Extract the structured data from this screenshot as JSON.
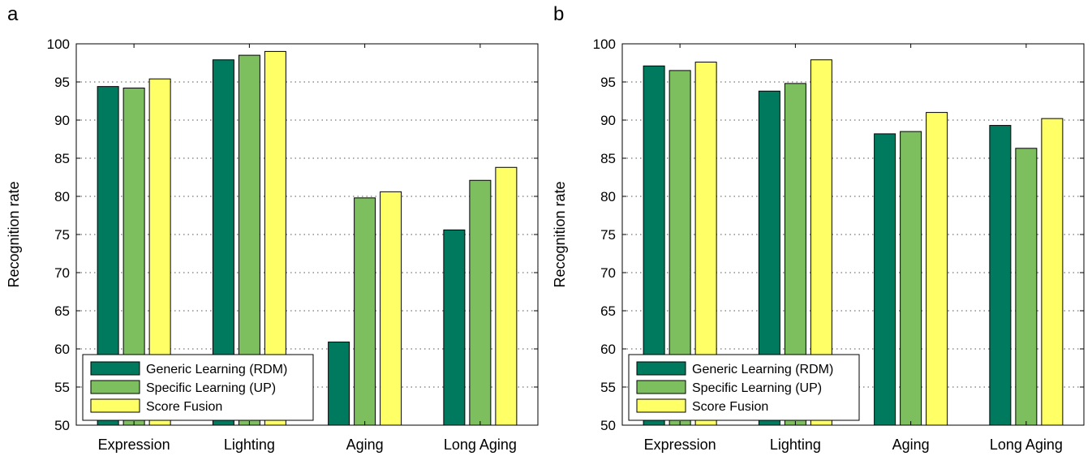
{
  "colors": {
    "generic": "#007a5e",
    "specific": "#7dbf5e",
    "fusion": "#ffff66"
  },
  "chart_data": [
    {
      "type": "bar",
      "panel_label": "a",
      "categories": [
        "Expression",
        "Lighting",
        "Aging",
        "Long Aging"
      ],
      "series": [
        {
          "name": "Generic Learning (RDM)",
          "values": [
            94.4,
            97.9,
            60.9,
            75.6
          ]
        },
        {
          "name": "Specific Learning (UP)",
          "values": [
            94.2,
            98.5,
            79.8,
            82.1
          ]
        },
        {
          "name": "Score Fusion",
          "values": [
            95.4,
            99.0,
            80.6,
            83.8
          ]
        }
      ],
      "ylabel": "Recognition rate",
      "ylim": [
        50,
        100
      ],
      "yticks": [
        50,
        55,
        60,
        65,
        70,
        75,
        80,
        85,
        90,
        95,
        100
      ],
      "grid": true,
      "legend_position": "bottom-left"
    },
    {
      "type": "bar",
      "panel_label": "b",
      "categories": [
        "Expression",
        "Lighting",
        "Aging",
        "Long Aging"
      ],
      "series": [
        {
          "name": "Generic Learning (RDM)",
          "values": [
            97.1,
            93.8,
            88.2,
            89.3
          ]
        },
        {
          "name": "Specific Learning (UP)",
          "values": [
            96.5,
            94.8,
            88.5,
            86.3
          ]
        },
        {
          "name": "Score Fusion",
          "values": [
            97.6,
            97.9,
            91.0,
            90.2
          ]
        }
      ],
      "ylabel": "Recognition rate",
      "ylim": [
        50,
        100
      ],
      "yticks": [
        50,
        55,
        60,
        65,
        70,
        75,
        80,
        85,
        90,
        95,
        100
      ],
      "grid": true,
      "legend_position": "bottom-left"
    }
  ]
}
